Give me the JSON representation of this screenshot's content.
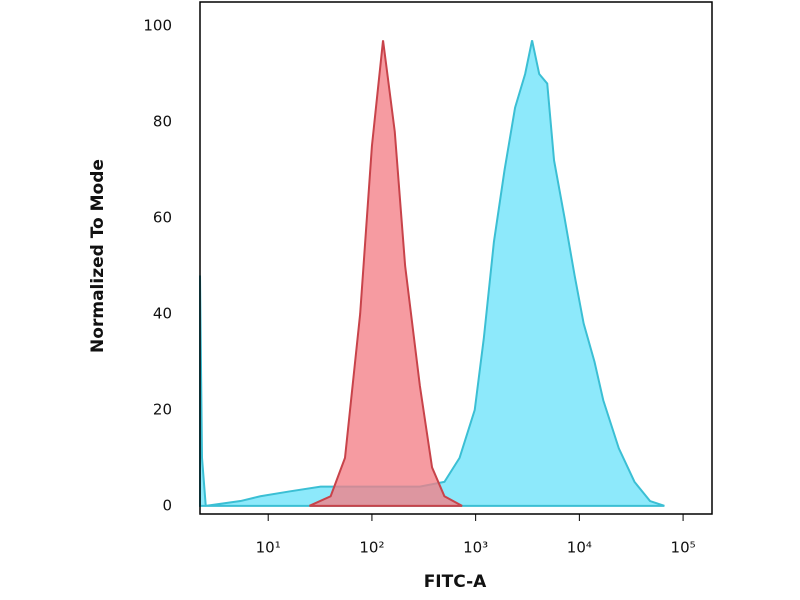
{
  "chart_data": {
    "type": "area",
    "x_label": "FITC-A",
    "y_label": "Normalized To Mode",
    "log_x": true,
    "xlim": [
      2.2,
      190000
    ],
    "xticks": [
      {
        "value": 10,
        "label": "10¹"
      },
      {
        "value": 100,
        "label": "10²"
      },
      {
        "value": 1000,
        "label": "10³"
      },
      {
        "value": 10000,
        "label": "10⁴"
      },
      {
        "value": 100000,
        "label": "10⁵"
      }
    ],
    "ylim": [
      -1.7,
      105
    ],
    "yticks": [
      0,
      20,
      40,
      60,
      80,
      100
    ],
    "series": [
      {
        "color": "#3bbfd4",
        "fill": "#8de9fb",
        "x": [
          2.2,
          2.3,
          2.5,
          5.4,
          8.4,
          16,
          32,
          49,
          120,
          290,
          500,
          700,
          980,
          1200,
          1500,
          1900,
          2400,
          3000,
          3500,
          4100,
          4900,
          5700,
          7200,
          9000,
          11000,
          14000,
          17000,
          24000,
          34000,
          48000,
          66000
        ],
        "values": [
          48,
          10,
          0,
          1,
          2,
          3,
          4,
          4,
          4,
          4,
          5,
          10,
          20,
          35,
          55,
          70,
          83,
          90,
          97,
          90,
          88,
          72,
          60,
          48,
          38,
          30,
          22,
          12,
          5,
          1,
          0
        ]
      },
      {
        "color": "#c8434a",
        "fill": "#f47f86",
        "x": [
          25,
          40,
          55,
          77,
          100,
          128,
          166,
          209,
          290,
          380,
          500,
          740
        ],
        "values": [
          0,
          2,
          10,
          40,
          75,
          97,
          78,
          50,
          25,
          8,
          2,
          0
        ]
      }
    ]
  }
}
